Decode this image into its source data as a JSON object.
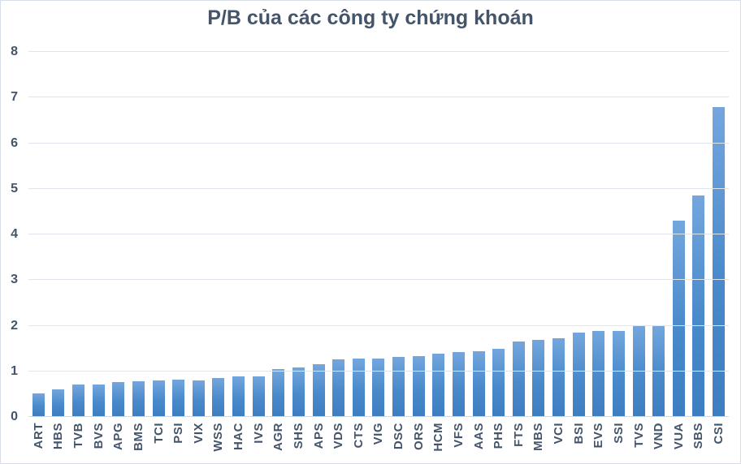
{
  "chart_data": {
    "type": "bar",
    "title": "P/B của các công ty chứng khoán",
    "xlabel": "",
    "ylabel": "",
    "ylim": [
      0,
      8
    ],
    "y_ticks": [
      0,
      1,
      2,
      3,
      4,
      5,
      6,
      7,
      8
    ],
    "grid": true,
    "legend": false,
    "categories": [
      "ART",
      "HBS",
      "TVB",
      "BVS",
      "APG",
      "BMS",
      "TCI",
      "PSI",
      "VIX",
      "WSS",
      "HAC",
      "IVS",
      "AGR",
      "SHS",
      "APS",
      "VDS",
      "CTS",
      "VIG",
      "DSC",
      "ORS",
      "HCM",
      "VFS",
      "AAS",
      "PHS",
      "FTS",
      "MBS",
      "VCI",
      "BSI",
      "EVS",
      "SSI",
      "TVS",
      "VND",
      "VUA",
      "SBS",
      "CSI"
    ],
    "values": [
      0.5,
      0.59,
      0.69,
      0.69,
      0.75,
      0.77,
      0.79,
      0.8,
      0.79,
      0.83,
      0.88,
      0.87,
      1.03,
      1.07,
      1.14,
      1.24,
      1.27,
      1.27,
      1.29,
      1.31,
      1.37,
      1.4,
      1.43,
      1.47,
      1.63,
      1.67,
      1.71,
      1.84,
      1.86,
      1.86,
      1.98,
      1.98,
      4.28,
      4.83,
      6.78
    ],
    "colors": {
      "bar_gradient_top": "#74A6DD",
      "bar_gradient_bottom": "#3E7DC0",
      "title_text": "#44546A",
      "axis_text": "#44546A",
      "gridline": "#DFE4ED",
      "axis_line": "#D2D8E0",
      "chart_border": "#D9DFE8",
      "background": "#FFFFFF"
    }
  }
}
